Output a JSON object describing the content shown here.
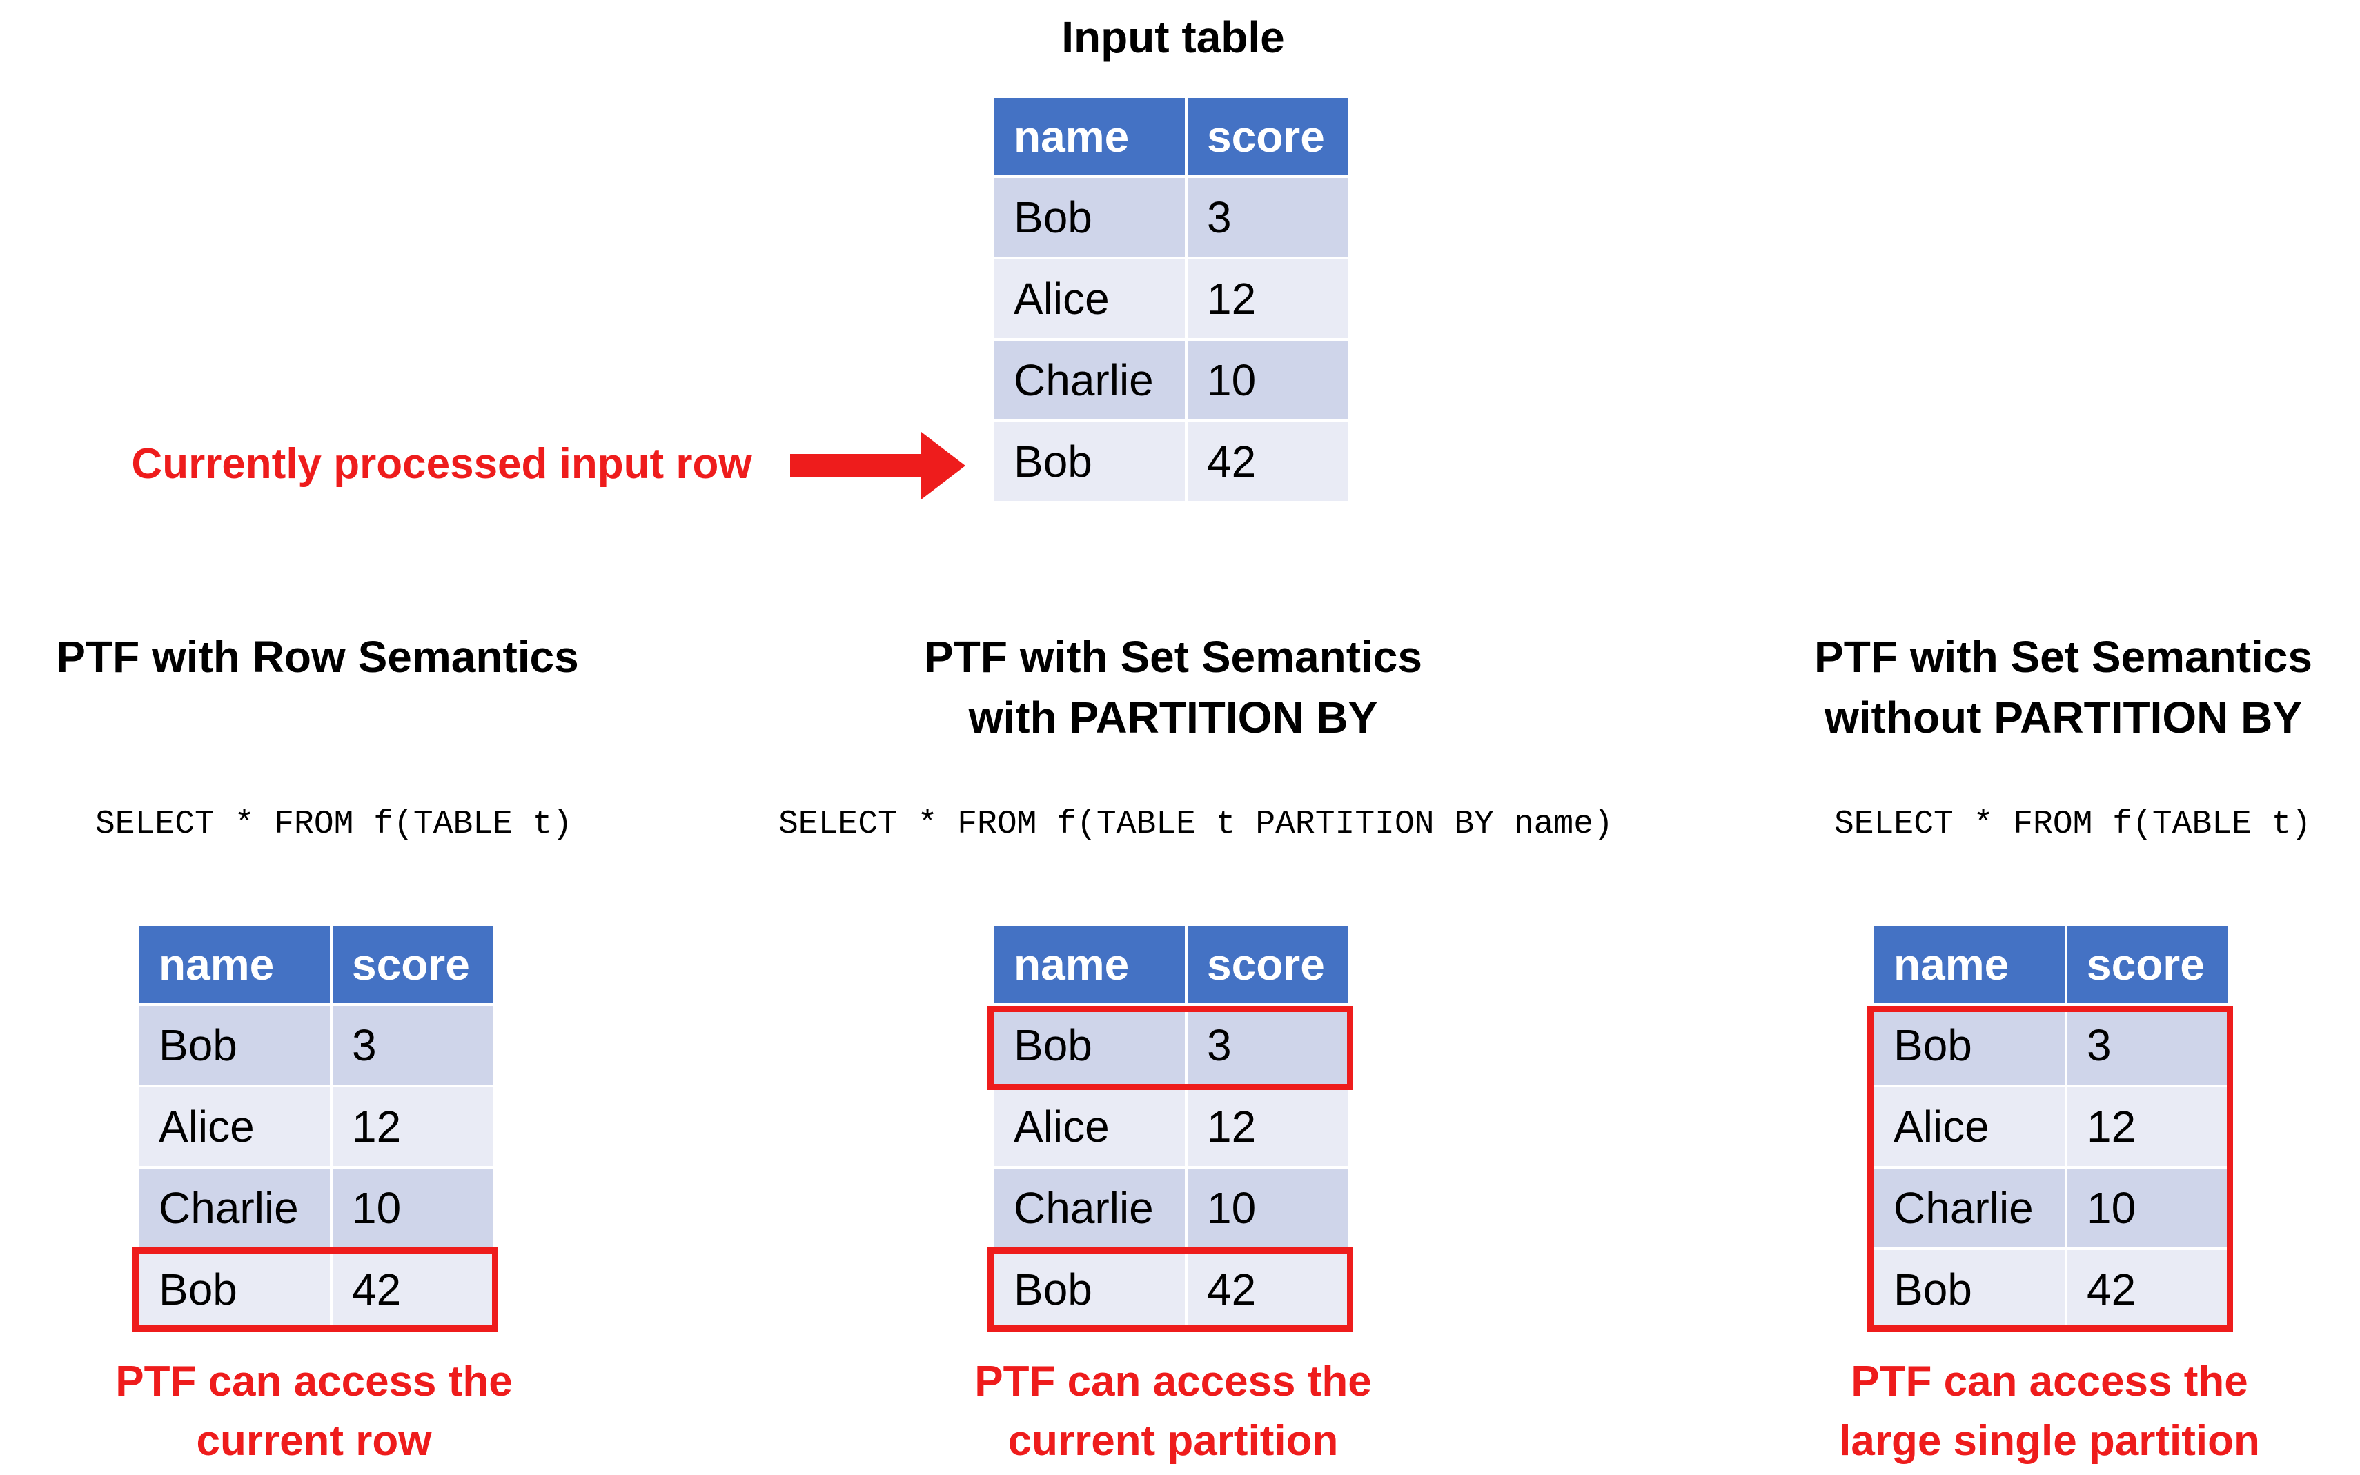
{
  "input": {
    "title": "Input table",
    "columns": [
      "name",
      "score"
    ],
    "rows": [
      [
        "Bob",
        "3"
      ],
      [
        "Alice",
        "12"
      ],
      [
        "Charlie",
        "10"
      ],
      [
        "Bob",
        "42"
      ]
    ],
    "arrow_label": "Currently processed input row"
  },
  "panels": [
    {
      "title_line1": "PTF with Row Semantics",
      "title_line2": "",
      "query": "SELECT * FROM f(TABLE t)",
      "columns": [
        "name",
        "score"
      ],
      "rows": [
        [
          "Bob",
          "3"
        ],
        [
          "Alice",
          "12"
        ],
        [
          "Charlie",
          "10"
        ],
        [
          "Bob",
          "42"
        ]
      ],
      "note_line1": "PTF can access the",
      "note_line2": "current row"
    },
    {
      "title_line1": "PTF with Set Semantics",
      "title_line2": "with PARTITION BY",
      "query": "SELECT * FROM f(TABLE t PARTITION BY name)",
      "columns": [
        "name",
        "score"
      ],
      "rows": [
        [
          "Bob",
          "3"
        ],
        [
          "Alice",
          "12"
        ],
        [
          "Charlie",
          "10"
        ],
        [
          "Bob",
          "42"
        ]
      ],
      "note_line1": "PTF can access the",
      "note_line2": "current partition"
    },
    {
      "title_line1": "PTF with Set Semantics",
      "title_line2": "without PARTITION BY",
      "query": "SELECT * FROM f(TABLE t)",
      "columns": [
        "name",
        "score"
      ],
      "rows": [
        [
          "Bob",
          "3"
        ],
        [
          "Alice",
          "12"
        ],
        [
          "Charlie",
          "10"
        ],
        [
          "Bob",
          "42"
        ]
      ],
      "note_line1": "PTF can access the",
      "note_line2": "large single partition"
    }
  ],
  "colors": {
    "header": "#4472c4",
    "row_dark": "#cfd5ea",
    "row_light": "#e9ebf5",
    "highlight": "#ee1c1c"
  }
}
